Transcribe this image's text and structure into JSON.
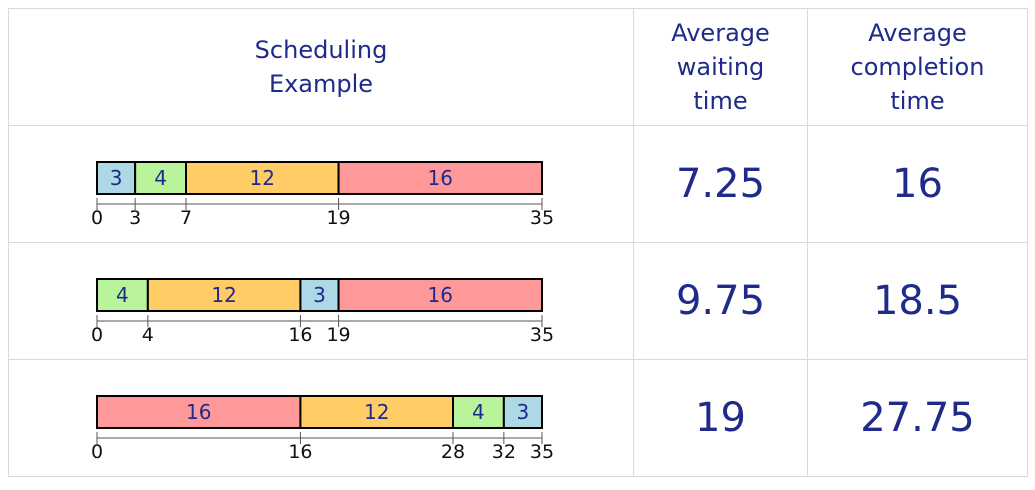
{
  "header": {
    "example_line1": "Scheduling",
    "example_line2": "Example",
    "waiting_line1": "Average",
    "waiting_line2": "waiting",
    "waiting_line3": "time",
    "completion_line1": "Average",
    "completion_line2": "completion",
    "completion_line3": "time"
  },
  "colors": {
    "job3": "#add8e6",
    "job4": "#b9f49d",
    "job12": "#ffcc66",
    "job16": "#ff9999",
    "text": "#1f2a8a"
  },
  "total": 35,
  "rows": [
    {
      "jobs": [
        3,
        4,
        12,
        16
      ],
      "ticks": [
        "0",
        "3",
        "7",
        "19",
        "35"
      ],
      "avg_wait": "7.25",
      "avg_completion": "16"
    },
    {
      "jobs": [
        4,
        12,
        3,
        16
      ],
      "ticks": [
        "0",
        "4",
        "16",
        "19",
        "35"
      ],
      "avg_wait": "9.75",
      "avg_completion": "18.5"
    },
    {
      "jobs": [
        16,
        12,
        4,
        3
      ],
      "ticks": [
        "0",
        "16",
        "28",
        "32",
        "35"
      ],
      "avg_wait": "19",
      "avg_completion": "27.75"
    }
  ]
}
